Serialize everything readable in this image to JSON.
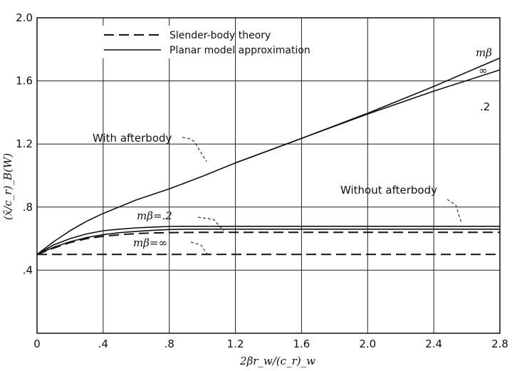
{
  "chart_data": {
    "type": "line",
    "xlabel": "2βr_w/(c_r)_w",
    "ylabel": "(x̄/c_r)_B(W)",
    "xlim": [
      0,
      2.8
    ],
    "ylim": [
      0,
      2.0
    ],
    "xticks": [
      "0",
      ".4",
      ".8",
      "1.2",
      "1.6",
      "2.0",
      "2.4",
      "2.8"
    ],
    "yticks": [
      "0",
      ".4",
      ".8",
      "1.2",
      "1.6",
      "2.0"
    ],
    "grid": true,
    "legend": {
      "placement": "top-left",
      "entries": [
        {
          "label": "Slender-body theory",
          "style": "dashed"
        },
        {
          "label": "Planar model approximation",
          "style": "solid"
        }
      ]
    },
    "annotations": {
      "with_afterbody": "With afterbody",
      "without_afterbody": "Without afterbody",
      "mbeta_2": "mβ=.2",
      "mbeta_inf": "mβ=∞",
      "mbeta_header": "mβ",
      "end_inf": "∞",
      "end_2": ".2"
    },
    "series": [
      {
        "style": "dashed",
        "x": [
          0,
          0.4,
          0.8,
          1.2,
          1.6,
          2.0,
          2.4,
          2.8
        ],
        "y": [
          0.5,
          0.5,
          0.5,
          0.5,
          0.5,
          0.5,
          0.5,
          0.5
        ]
      },
      {
        "style": "dashed",
        "x": [
          0,
          0.1,
          0.2,
          0.3,
          0.4,
          0.5,
          0.6,
          0.7,
          0.8,
          1.0,
          1.6,
          2.0,
          2.8
        ],
        "y": [
          0.5,
          0.54,
          0.575,
          0.6,
          0.615,
          0.625,
          0.632,
          0.636,
          0.638,
          0.64,
          0.64,
          0.64,
          0.64
        ]
      },
      {
        "style": "solid",
        "x": [
          0,
          0.1,
          0.2,
          0.3,
          0.4,
          0.5,
          0.6,
          0.7,
          0.8,
          0.9,
          1.0,
          1.6,
          2.0,
          2.8
        ],
        "y": [
          0.5,
          0.545,
          0.58,
          0.607,
          0.625,
          0.638,
          0.646,
          0.653,
          0.658,
          0.66,
          0.66,
          0.66,
          0.66,
          0.66
        ]
      },
      {
        "style": "solid",
        "x": [
          0,
          0.1,
          0.2,
          0.3,
          0.4,
          0.5,
          0.6,
          0.7,
          0.8,
          0.9,
          1.0,
          1.6,
          2.0,
          2.8
        ],
        "y": [
          0.5,
          0.56,
          0.6,
          0.63,
          0.65,
          0.66,
          0.668,
          0.673,
          0.677,
          0.678,
          0.678,
          0.678,
          0.678,
          0.678
        ]
      },
      {
        "style": "solid",
        "x": [
          0,
          0.1,
          0.2,
          0.3,
          0.4,
          0.6,
          0.8,
          1.0,
          1.2,
          1.6,
          2.0,
          2.4,
          2.8
        ],
        "y": [
          0.5,
          0.58,
          0.65,
          0.71,
          0.76,
          0.845,
          0.915,
          0.995,
          1.08,
          1.235,
          1.395,
          1.565,
          1.745
        ]
      },
      {
        "style": "solid",
        "x": [
          1.2,
          1.6,
          2.0,
          2.4,
          2.8
        ],
        "y": [
          1.08,
          1.235,
          1.39,
          1.535,
          1.67
        ]
      }
    ]
  }
}
